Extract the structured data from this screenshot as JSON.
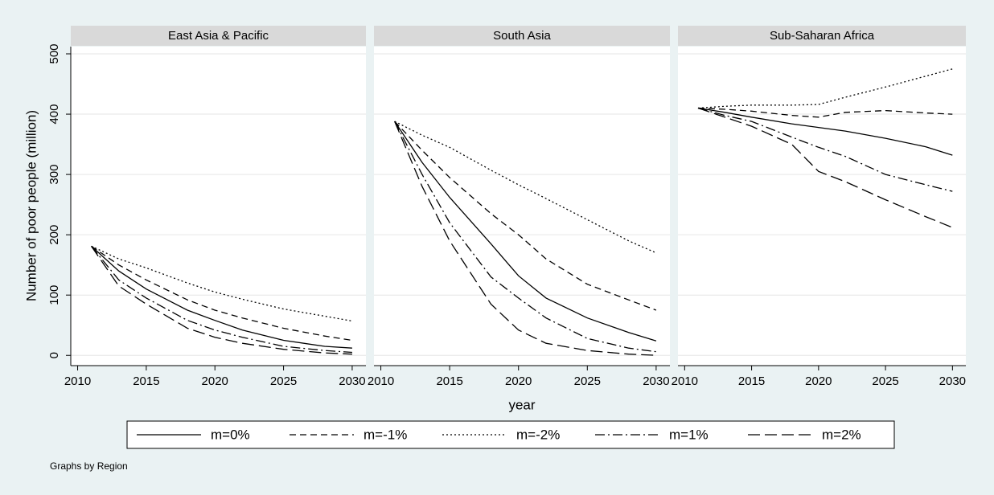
{
  "note": "Graphs by Region",
  "chart_data": [
    {
      "type": "line",
      "title": "East Asia & Pacific",
      "y_label": "Number of poor people (million)",
      "legend": "bottom",
      "grid": true,
      "x": [
        2011,
        2013,
        2015,
        2018,
        2020,
        2022,
        2025,
        2028,
        2030
      ],
      "xlim": [
        2009.5,
        2031
      ],
      "xticks": [
        2010,
        2015,
        2020,
        2025,
        2030
      ],
      "ylim": [
        -17,
        512
      ],
      "yticks": [
        0,
        100,
        200,
        300,
        400,
        500
      ],
      "series": [
        {
          "name": "m=0%",
          "color": "#000000",
          "dash": "solid",
          "values": [
            181,
            140,
            110,
            75,
            58,
            42,
            25,
            15,
            12
          ]
        },
        {
          "name": "m=-1%",
          "color": "#000000",
          "dash": "dashed",
          "values": [
            181,
            150,
            125,
            92,
            75,
            62,
            45,
            32,
            25
          ]
        },
        {
          "name": "m=-2%",
          "color": "#000000",
          "dash": "dotted",
          "values": [
            181,
            160,
            145,
            120,
            105,
            93,
            77,
            65,
            57
          ]
        },
        {
          "name": "m=1%",
          "color": "#000000",
          "dash": "dashdot",
          "values": [
            181,
            125,
            95,
            58,
            42,
            30,
            15,
            8,
            5
          ]
        },
        {
          "name": "m=2%",
          "color": "#000000",
          "dash": "longdash",
          "values": [
            181,
            115,
            85,
            45,
            30,
            20,
            10,
            4,
            2
          ]
        }
      ]
    },
    {
      "type": "line",
      "title": "South Asia",
      "x_label": "year",
      "grid": true,
      "x": [
        2011,
        2013,
        2015,
        2018,
        2020,
        2022,
        2025,
        2028,
        2030
      ],
      "xlim": [
        2009.5,
        2031
      ],
      "xticks": [
        2010,
        2015,
        2020,
        2025,
        2030
      ],
      "ylim": [
        -17,
        512
      ],
      "yticks": [
        0,
        100,
        200,
        300,
        400,
        500
      ],
      "series": [
        {
          "name": "m=0%",
          "color": "#000000",
          "dash": "solid",
          "values": [
            388,
            320,
            262,
            185,
            132,
            95,
            62,
            38,
            24
          ]
        },
        {
          "name": "m=-1%",
          "color": "#000000",
          "dash": "dashed",
          "values": [
            388,
            340,
            295,
            235,
            200,
            160,
            118,
            92,
            75
          ]
        },
        {
          "name": "m=-2%",
          "color": "#000000",
          "dash": "dotted",
          "values": [
            388,
            365,
            345,
            307,
            283,
            260,
            225,
            190,
            170
          ]
        },
        {
          "name": "m=1%",
          "color": "#000000",
          "dash": "dashdot",
          "values": [
            388,
            300,
            220,
            130,
            95,
            62,
            28,
            12,
            6
          ]
        },
        {
          "name": "m=2%",
          "color": "#000000",
          "dash": "longdash",
          "values": [
            388,
            280,
            190,
            85,
            42,
            20,
            8,
            2,
            0
          ]
        }
      ]
    },
    {
      "type": "line",
      "title": "Sub-Saharan Africa",
      "grid": true,
      "x": [
        2011,
        2013,
        2015,
        2018,
        2020,
        2022,
        2025,
        2028,
        2030
      ],
      "xlim": [
        2009.5,
        2031
      ],
      "xticks": [
        2010,
        2015,
        2020,
        2025,
        2030
      ],
      "ylim": [
        -17,
        512
      ],
      "yticks": [
        0,
        100,
        200,
        300,
        400,
        500
      ],
      "series": [
        {
          "name": "m=0%",
          "color": "#000000",
          "dash": "solid",
          "values": [
            410,
            403,
            395,
            384,
            378,
            372,
            360,
            346,
            332
          ]
        },
        {
          "name": "m=-1%",
          "color": "#000000",
          "dash": "dashed",
          "values": [
            410,
            408,
            405,
            398,
            395,
            403,
            406,
            402,
            400
          ]
        },
        {
          "name": "m=-2%",
          "color": "#000000",
          "dash": "dotted",
          "values": [
            410,
            413,
            415,
            415,
            416,
            428,
            445,
            463,
            475
          ]
        },
        {
          "name": "m=1%",
          "color": "#000000",
          "dash": "dashdot",
          "values": [
            410,
            398,
            388,
            362,
            345,
            330,
            300,
            283,
            272
          ]
        },
        {
          "name": "m=2%",
          "color": "#000000",
          "dash": "longdash",
          "values": [
            410,
            395,
            380,
            350,
            305,
            288,
            258,
            230,
            212
          ]
        }
      ]
    }
  ]
}
